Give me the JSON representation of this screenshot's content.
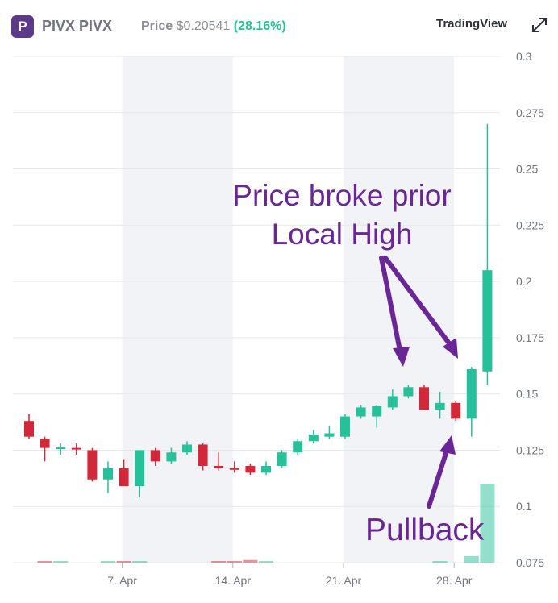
{
  "header": {
    "logo_letter": "P",
    "title": "PIVX PIVX",
    "price_label": "Price",
    "price_value": "$0.20541",
    "price_change": "(28.16%)",
    "provider": "TradingView",
    "expand_icon": "expand-arrows-icon"
  },
  "colors": {
    "up": "#26c19a",
    "down": "#d1283a",
    "shade": "#f1f3f6",
    "grid": "#e6e8ec",
    "annotation": "#6a2596"
  },
  "annotations": {
    "line1": "Price broke prior",
    "line2": "Local High",
    "pullback": "Pullback"
  },
  "chart_data": {
    "type": "candlestick",
    "y_ticks": [
      "0.3",
      "0.275",
      "0.25",
      "0.225",
      "0.2",
      "0.175",
      "0.15",
      "0.125",
      "0.1",
      "0.075"
    ],
    "x_ticks": [
      {
        "label": "7. Apr",
        "day": 7
      },
      {
        "label": "14. Apr",
        "day": 14
      },
      {
        "label": "21. Apr",
        "day": 21
      },
      {
        "label": "28. Apr",
        "day": 28
      }
    ],
    "ylim": [
      0.075,
      0.3
    ],
    "grid": true,
    "shaded_day_ranges": [
      [
        7,
        14
      ],
      [
        21,
        28
      ]
    ],
    "candles": [
      {
        "day": 1,
        "o": 0.138,
        "h": 0.141,
        "l": 0.13,
        "c": 0.131
      },
      {
        "day": 2,
        "o": 0.13,
        "h": 0.131,
        "l": 0.12,
        "c": 0.126
      },
      {
        "day": 3,
        "o": 0.126,
        "h": 0.128,
        "l": 0.123,
        "c": 0.1262
      },
      {
        "day": 4,
        "o": 0.126,
        "h": 0.128,
        "l": 0.123,
        "c": 0.1258
      },
      {
        "day": 5,
        "o": 0.125,
        "h": 0.126,
        "l": 0.111,
        "c": 0.112
      },
      {
        "day": 6,
        "o": 0.112,
        "h": 0.12,
        "l": 0.106,
        "c": 0.117
      },
      {
        "day": 7,
        "o": 0.117,
        "h": 0.121,
        "l": 0.109,
        "c": 0.109
      },
      {
        "day": 8,
        "o": 0.109,
        "h": 0.125,
        "l": 0.104,
        "c": 0.125
      },
      {
        "day": 9,
        "o": 0.125,
        "h": 0.126,
        "l": 0.118,
        "c": 0.12
      },
      {
        "day": 10,
        "o": 0.12,
        "h": 0.126,
        "l": 0.119,
        "c": 0.124
      },
      {
        "day": 11,
        "o": 0.124,
        "h": 0.129,
        "l": 0.123,
        "c": 0.1275
      },
      {
        "day": 12,
        "o": 0.1275,
        "h": 0.128,
        "l": 0.116,
        "c": 0.118
      },
      {
        "day": 13,
        "o": 0.118,
        "h": 0.124,
        "l": 0.116,
        "c": 0.117
      },
      {
        "day": 14,
        "o": 0.117,
        "h": 0.12,
        "l": 0.115,
        "c": 0.1165
      },
      {
        "day": 15,
        "o": 0.118,
        "h": 0.119,
        "l": 0.114,
        "c": 0.115
      },
      {
        "day": 16,
        "o": 0.115,
        "h": 0.12,
        "l": 0.114,
        "c": 0.118
      },
      {
        "day": 17,
        "o": 0.118,
        "h": 0.125,
        "l": 0.117,
        "c": 0.124
      },
      {
        "day": 18,
        "o": 0.124,
        "h": 0.13,
        "l": 0.123,
        "c": 0.129
      },
      {
        "day": 19,
        "o": 0.129,
        "h": 0.134,
        "l": 0.128,
        "c": 0.132
      },
      {
        "day": 20,
        "o": 0.131,
        "h": 0.136,
        "l": 0.13,
        "c": 0.1325
      },
      {
        "day": 21,
        "o": 0.131,
        "h": 0.141,
        "l": 0.13,
        "c": 0.14
      },
      {
        "day": 22,
        "o": 0.14,
        "h": 0.145,
        "l": 0.139,
        "c": 0.144
      },
      {
        "day": 23,
        "o": 0.14,
        "h": 0.145,
        "l": 0.135,
        "c": 0.1445
      },
      {
        "day": 24,
        "o": 0.144,
        "h": 0.152,
        "l": 0.143,
        "c": 0.149
      },
      {
        "day": 25,
        "o": 0.149,
        "h": 0.154,
        "l": 0.148,
        "c": 0.153
      },
      {
        "day": 26,
        "o": 0.153,
        "h": 0.154,
        "l": 0.143,
        "c": 0.143
      },
      {
        "day": 27,
        "o": 0.143,
        "h": 0.151,
        "l": 0.139,
        "c": 0.146
      },
      {
        "day": 28,
        "o": 0.146,
        "h": 0.147,
        "l": 0.138,
        "c": 0.139
      },
      {
        "day": 29,
        "o": 0.139,
        "h": 0.162,
        "l": 0.131,
        "c": 0.161
      },
      {
        "day": 30,
        "o": 0.16,
        "h": 0.27,
        "l": 0.154,
        "c": 0.205
      }
    ],
    "volume": [
      {
        "day": 1,
        "v": 0
      },
      {
        "day": 2,
        "v": 0.3
      },
      {
        "day": 3,
        "v": 0.3
      },
      {
        "day": 4,
        "v": 0
      },
      {
        "day": 5,
        "v": 0
      },
      {
        "day": 6,
        "v": 0.3
      },
      {
        "day": 7,
        "v": 0.3
      },
      {
        "day": 8,
        "v": 0.3
      },
      {
        "day": 9,
        "v": 0
      },
      {
        "day": 10,
        "v": 0
      },
      {
        "day": 11,
        "v": 0
      },
      {
        "day": 12,
        "v": 0
      },
      {
        "day": 13,
        "v": 0.3
      },
      {
        "day": 14,
        "v": 0.3
      },
      {
        "day": 15,
        "v": 0.6
      },
      {
        "day": 16,
        "v": 0.3
      },
      {
        "day": 17,
        "v": 0
      },
      {
        "day": 18,
        "v": 0
      },
      {
        "day": 19,
        "v": 0
      },
      {
        "day": 20,
        "v": 0
      },
      {
        "day": 21,
        "v": 0
      },
      {
        "day": 22,
        "v": 0
      },
      {
        "day": 23,
        "v": 0
      },
      {
        "day": 24,
        "v": 0
      },
      {
        "day": 25,
        "v": 0
      },
      {
        "day": 26,
        "v": 0
      },
      {
        "day": 27,
        "v": 0.3
      },
      {
        "day": 28,
        "v": 0
      },
      {
        "day": 29,
        "v": 1.5
      },
      {
        "day": 30,
        "v": 18
      }
    ]
  }
}
